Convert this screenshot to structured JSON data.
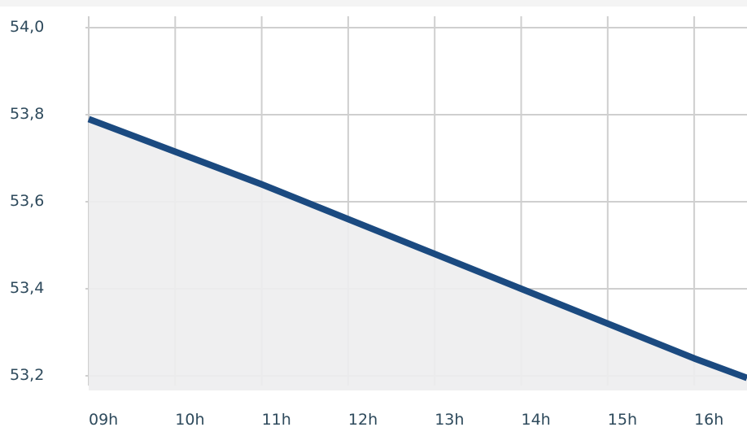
{
  "chart_data": {
    "type": "area",
    "x": [
      "09h",
      "10h",
      "11h",
      "12h",
      "13h",
      "14h",
      "15h",
      "16h",
      "16h30"
    ],
    "y_ticks": [
      "54,0",
      "53,8",
      "53,6",
      "53,4",
      "53,2"
    ],
    "x_ticks": [
      "09h",
      "10h",
      "11h",
      "12h",
      "13h",
      "14h",
      "15h",
      "16h"
    ],
    "ylim": [
      53.2,
      54.0
    ],
    "series": [
      {
        "values": [
          53.79,
          53.715,
          53.64,
          53.56,
          53.48,
          53.4,
          53.32,
          53.24,
          53.195
        ]
      }
    ],
    "grid": true,
    "colors": {
      "line": "#1b4a80",
      "fill": "#ededee",
      "grid": "#cfcfcf",
      "axis_text": "#2e4a5c"
    }
  }
}
